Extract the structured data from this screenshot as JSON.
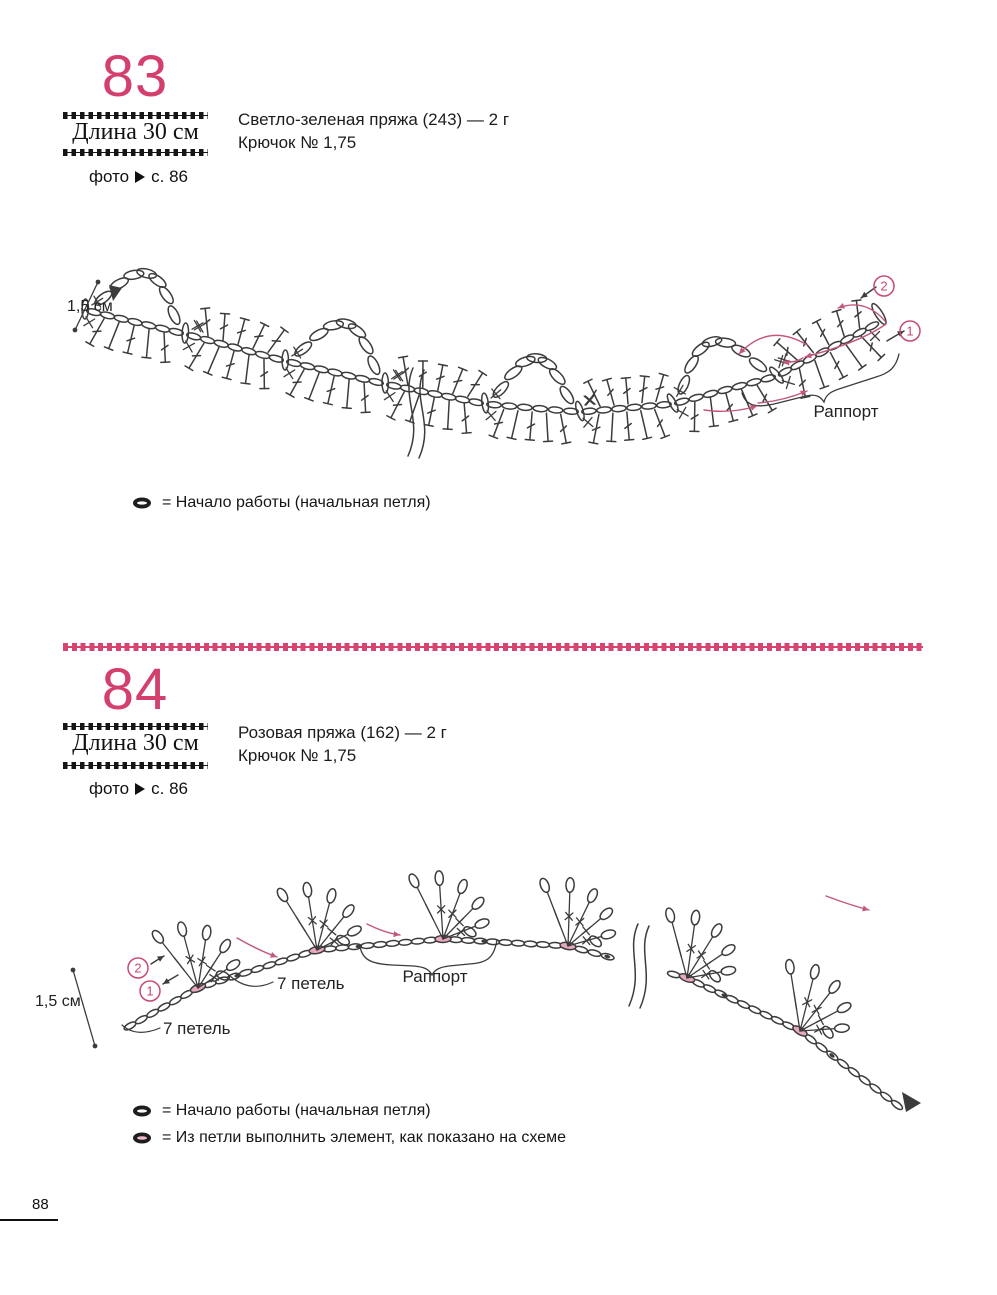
{
  "page": {
    "number": "88"
  },
  "colors": {
    "accent": "#d4406e",
    "ink": "#3c3c3c",
    "pink_fill": "#e9a8bb",
    "arrow_pink": "#c4577e"
  },
  "patterns": [
    {
      "number": "83",
      "length_label": "Длина 30 см",
      "photo_label": "фото",
      "photo_page": "с. 86",
      "yarn_line": "Светло-зеленая пряжа (243) — 2 г",
      "hook_line": "Крючок № 1,75",
      "diagram": {
        "measure_label": "1,5 см",
        "repeat_label": "Раппорт",
        "marker_1": "1",
        "marker_2": "2"
      },
      "legend": [
        {
          "text": "= Начало работы (начальная петля)"
        }
      ]
    },
    {
      "number": "84",
      "length_label": "Длина 30 см",
      "photo_label": "фото",
      "photo_page": "с. 86",
      "yarn_line": "Розовая пряжа (162) — 2 г",
      "hook_line": "Крючок № 1,75",
      "diagram": {
        "measure_label": "1,5 см",
        "repeat_label": "Раппорт",
        "marker_1": "1",
        "marker_2": "2",
        "chain_label_1": "7 петель",
        "chain_label_2": "7 петель"
      },
      "legend": [
        {
          "text": "= Начало работы (начальная петля)"
        },
        {
          "text": "= Из петли выполнить элемент, как показано на схеме"
        }
      ]
    }
  ]
}
